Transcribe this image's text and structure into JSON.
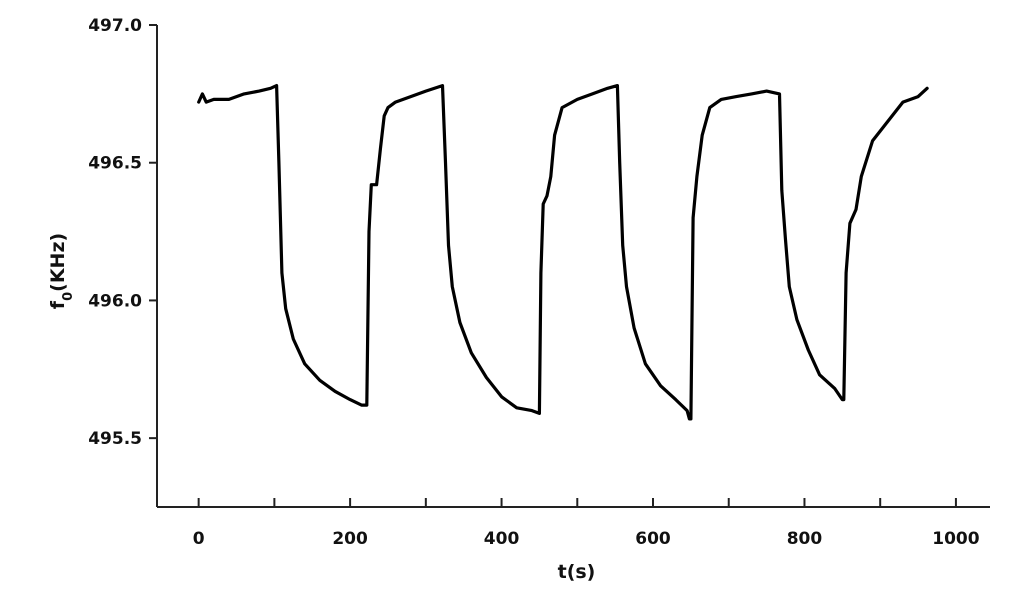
{
  "chart_data": {
    "type": "line",
    "xlabel": "t(s)",
    "ylabel": {
      "main": "f",
      "sub": "0",
      "rest": "(KHz)"
    },
    "xlim": [
      -55,
      1045
    ],
    "ylim": [
      495.25,
      497.0
    ],
    "xticks": [
      0,
      200,
      400,
      600,
      800,
      1000
    ],
    "xtick_labels": [
      "0",
      "200",
      "400",
      "600",
      "800",
      "1000"
    ],
    "x_minor_ticks": [
      100,
      300,
      500,
      700,
      900
    ],
    "yticks": [
      497.0,
      496.5,
      496.0,
      495.5
    ],
    "ytick_labels": [
      "497.0",
      "496.5",
      "496.0",
      "495.5"
    ],
    "grid": false,
    "line_color": "#000000",
    "series": [
      {
        "x": [
          0,
          5,
          10,
          20,
          40,
          60,
          80,
          95,
          103,
          106,
          110,
          115,
          125,
          140,
          160,
          180,
          200,
          215,
          222,
          225,
          228,
          235,
          240,
          245,
          250,
          260,
          280,
          300,
          322,
          326,
          330,
          335,
          345,
          360,
          380,
          400,
          420,
          440,
          450,
          452,
          455,
          460,
          465,
          470,
          480,
          500,
          520,
          540,
          553,
          556,
          560,
          565,
          575,
          590,
          610,
          630,
          645,
          648,
          650,
          653,
          658,
          665,
          675,
          690,
          710,
          730,
          750,
          767,
          770,
          775,
          780,
          790,
          805,
          820,
          840,
          850,
          852,
          855,
          860,
          868,
          875,
          890,
          910,
          930,
          950,
          962
        ],
        "y": [
          496.72,
          496.75,
          496.72,
          496.73,
          496.73,
          496.75,
          496.76,
          496.77,
          496.78,
          496.5,
          496.1,
          495.97,
          495.86,
          495.77,
          495.71,
          495.67,
          495.64,
          495.62,
          495.62,
          496.25,
          496.42,
          496.42,
          496.55,
          496.67,
          496.7,
          496.72,
          496.74,
          496.76,
          496.78,
          496.5,
          496.2,
          496.05,
          495.92,
          495.81,
          495.72,
          495.65,
          495.61,
          495.6,
          495.59,
          496.1,
          496.35,
          496.38,
          496.45,
          496.6,
          496.7,
          496.73,
          496.75,
          496.77,
          496.78,
          496.5,
          496.2,
          496.05,
          495.9,
          495.77,
          495.69,
          495.64,
          495.6,
          495.57,
          495.57,
          496.3,
          496.45,
          496.6,
          496.7,
          496.73,
          496.74,
          496.75,
          496.76,
          496.75,
          496.4,
          496.22,
          496.05,
          495.93,
          495.82,
          495.73,
          495.68,
          495.64,
          495.64,
          496.1,
          496.28,
          496.33,
          496.45,
          496.58,
          496.65,
          496.72,
          496.74,
          496.77
        ]
      }
    ]
  }
}
